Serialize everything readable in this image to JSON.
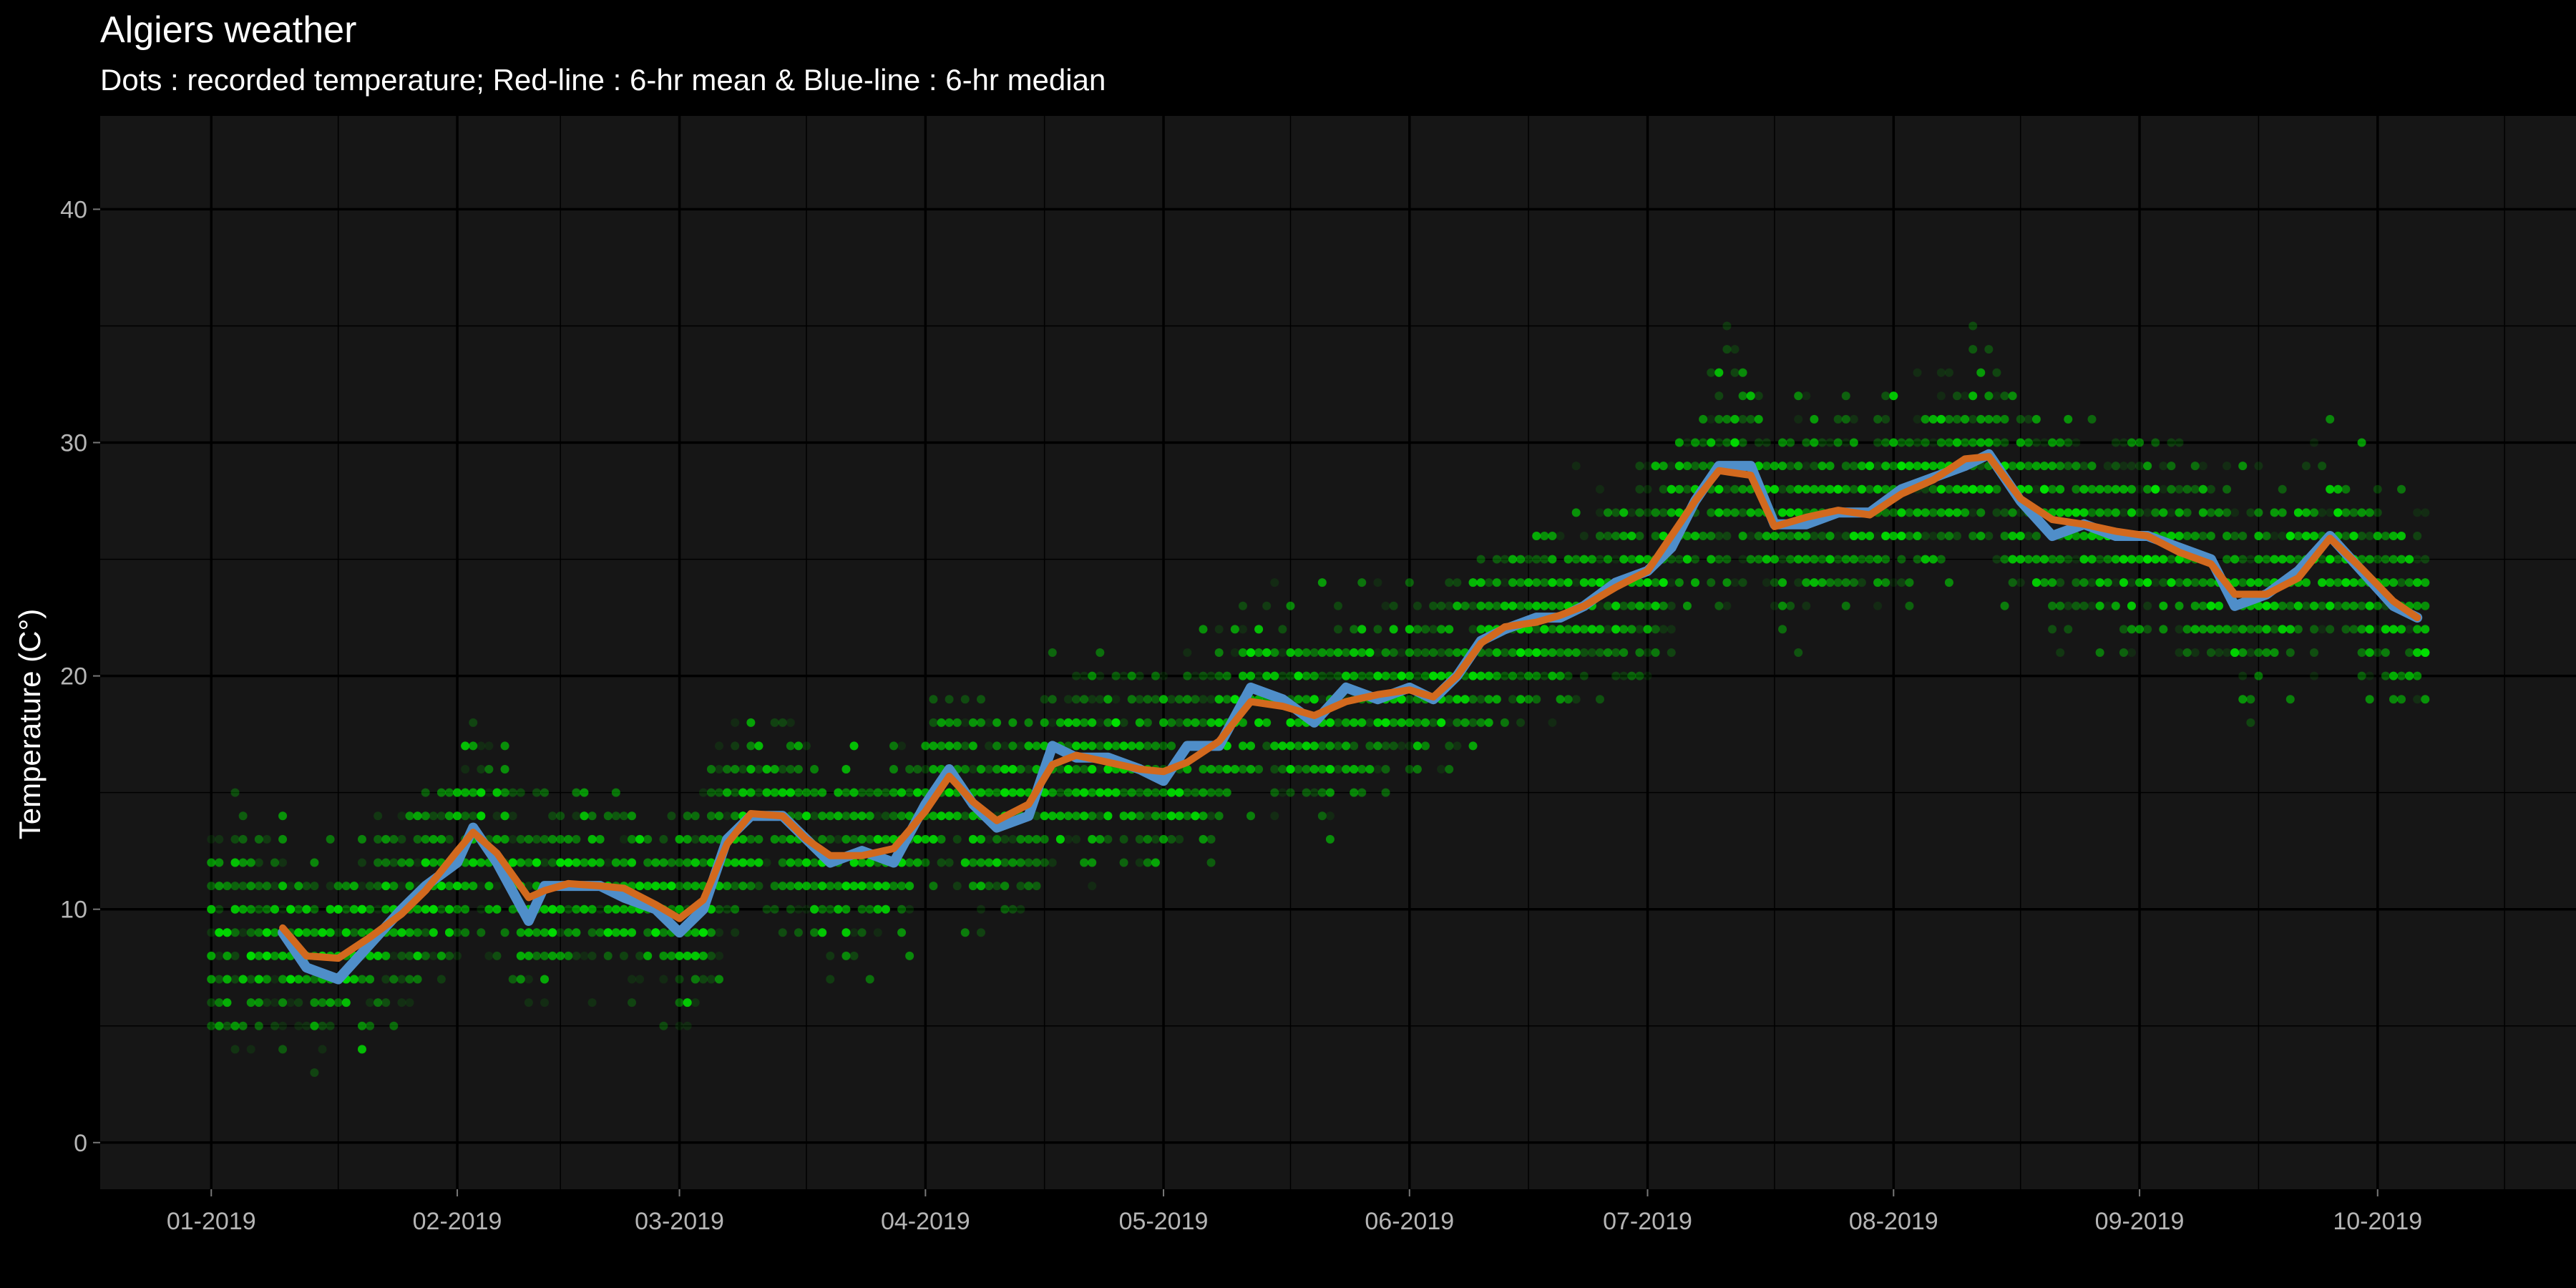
{
  "chart_data": {
    "type": "scatter",
    "title": "Algiers weather",
    "subtitle": "Dots : recorded temperature; Red-line : 6-hr mean & Blue-line : 6-hr median",
    "xlabel": "",
    "ylabel": "Temperature (C°)",
    "x_tick_labels": [
      "01-2019",
      "02-2019",
      "03-2019",
      "04-2019",
      "05-2019",
      "06-2019",
      "07-2019",
      "08-2019",
      "09-2019",
      "10-2019"
    ],
    "x_range": [
      "2018-12-18",
      "2019-10-26"
    ],
    "ylim": [
      -2,
      44
    ],
    "y_ticks": [
      0,
      10,
      20,
      30,
      40
    ],
    "grid": true,
    "colors": {
      "background": "#000000",
      "panel": "#161616",
      "grid": "#000000",
      "dots": "#00e600",
      "mean_line": "#d2691e",
      "median_line": "#4f8ec9"
    },
    "series": [
      {
        "name": "6-hr mean",
        "x": [
          "2019-01-10",
          "2019-01-13",
          "2019-01-17",
          "2019-01-21",
          "2019-01-25",
          "2019-01-28",
          "2019-02-01",
          "2019-02-03",
          "2019-02-06",
          "2019-02-10",
          "2019-02-12",
          "2019-02-15",
          "2019-02-19",
          "2019-02-22",
          "2019-02-26",
          "2019-03-01",
          "2019-03-04",
          "2019-03-07",
          "2019-03-10",
          "2019-03-14",
          "2019-03-17",
          "2019-03-20",
          "2019-03-24",
          "2019-03-28",
          "2019-04-01",
          "2019-04-04",
          "2019-04-07",
          "2019-04-10",
          "2019-04-14",
          "2019-04-17",
          "2019-04-20",
          "2019-04-24",
          "2019-04-28",
          "2019-05-01",
          "2019-05-04",
          "2019-05-08",
          "2019-05-12",
          "2019-05-16",
          "2019-05-20",
          "2019-05-24",
          "2019-05-28",
          "2019-06-01",
          "2019-06-04",
          "2019-06-07",
          "2019-06-10",
          "2019-06-13",
          "2019-06-17",
          "2019-06-20",
          "2019-06-23",
          "2019-06-27",
          "2019-07-01",
          "2019-07-04",
          "2019-07-07",
          "2019-07-10",
          "2019-07-14",
          "2019-07-17",
          "2019-07-21",
          "2019-07-25",
          "2019-07-29",
          "2019-08-02",
          "2019-08-06",
          "2019-08-10",
          "2019-08-13",
          "2019-08-17",
          "2019-08-21",
          "2019-08-25",
          "2019-08-29",
          "2019-09-02",
          "2019-09-06",
          "2019-09-10",
          "2019-09-13",
          "2019-09-17",
          "2019-09-21",
          "2019-09-25",
          "2019-09-29",
          "2019-10-03",
          "2019-10-06"
        ],
        "values": [
          9.2,
          8.0,
          7.9,
          8.8,
          9.8,
          10.8,
          12.5,
          13.3,
          12.4,
          10.5,
          10.8,
          11.1,
          11.0,
          10.9,
          10.2,
          9.6,
          10.4,
          12.8,
          14.1,
          14.0,
          13.0,
          12.3,
          12.3,
          12.6,
          14.2,
          15.7,
          14.6,
          13.8,
          14.5,
          16.2,
          16.6,
          16.3,
          16.0,
          15.9,
          16.3,
          17.2,
          18.9,
          18.7,
          18.3,
          18.9,
          19.2,
          19.4,
          19.1,
          20.0,
          21.4,
          22.1,
          22.3,
          22.6,
          23.0,
          23.8,
          24.5,
          26.0,
          27.5,
          28.8,
          28.6,
          26.4,
          26.8,
          27.1,
          26.9,
          27.8,
          28.4,
          29.3,
          29.4,
          27.6,
          26.7,
          26.5,
          26.2,
          26.0,
          25.3,
          24.8,
          23.5,
          23.5,
          24.2,
          25.9,
          24.6,
          23.2,
          22.5
        ]
      },
      {
        "name": "6-hr median",
        "x": [
          "2019-01-10",
          "2019-01-13",
          "2019-01-17",
          "2019-01-21",
          "2019-01-25",
          "2019-01-28",
          "2019-02-01",
          "2019-02-03",
          "2019-02-06",
          "2019-02-10",
          "2019-02-12",
          "2019-02-15",
          "2019-02-19",
          "2019-02-22",
          "2019-02-26",
          "2019-03-01",
          "2019-03-04",
          "2019-03-07",
          "2019-03-10",
          "2019-03-14",
          "2019-03-17",
          "2019-03-20",
          "2019-03-24",
          "2019-03-28",
          "2019-04-01",
          "2019-04-04",
          "2019-04-07",
          "2019-04-10",
          "2019-04-14",
          "2019-04-17",
          "2019-04-20",
          "2019-04-24",
          "2019-04-28",
          "2019-05-01",
          "2019-05-04",
          "2019-05-08",
          "2019-05-12",
          "2019-05-16",
          "2019-05-20",
          "2019-05-24",
          "2019-05-28",
          "2019-06-01",
          "2019-06-04",
          "2019-06-07",
          "2019-06-10",
          "2019-06-13",
          "2019-06-17",
          "2019-06-20",
          "2019-06-23",
          "2019-06-27",
          "2019-07-01",
          "2019-07-04",
          "2019-07-07",
          "2019-07-10",
          "2019-07-14",
          "2019-07-17",
          "2019-07-21",
          "2019-07-25",
          "2019-07-29",
          "2019-08-02",
          "2019-08-06",
          "2019-08-10",
          "2019-08-13",
          "2019-08-17",
          "2019-08-21",
          "2019-08-25",
          "2019-08-29",
          "2019-09-02",
          "2019-09-06",
          "2019-09-10",
          "2019-09-13",
          "2019-09-17",
          "2019-09-21",
          "2019-09-25",
          "2019-09-29",
          "2019-10-03",
          "2019-10-06"
        ],
        "values": [
          9.0,
          7.5,
          7.0,
          8.5,
          10.0,
          11.0,
          12.0,
          13.5,
          12.0,
          9.5,
          11.0,
          11.0,
          11.0,
          10.5,
          10.0,
          9.0,
          10.0,
          13.0,
          14.0,
          14.0,
          13.0,
          12.0,
          12.5,
          12.0,
          14.5,
          16.0,
          14.5,
          13.5,
          14.0,
          17.0,
          16.5,
          16.5,
          16.0,
          15.5,
          17.0,
          17.0,
          19.5,
          19.0,
          18.0,
          19.5,
          19.0,
          19.5,
          19.0,
          20.0,
          21.5,
          22.0,
          22.5,
          22.5,
          23.0,
          24.0,
          24.5,
          25.5,
          27.5,
          29.0,
          29.0,
          26.5,
          26.5,
          27.0,
          27.0,
          28.0,
          28.5,
          29.0,
          29.5,
          27.5,
          26.0,
          26.5,
          26.0,
          26.0,
          25.5,
          25.0,
          23.0,
          23.5,
          24.5,
          26.0,
          24.5,
          23.0,
          22.5
        ]
      }
    ]
  }
}
